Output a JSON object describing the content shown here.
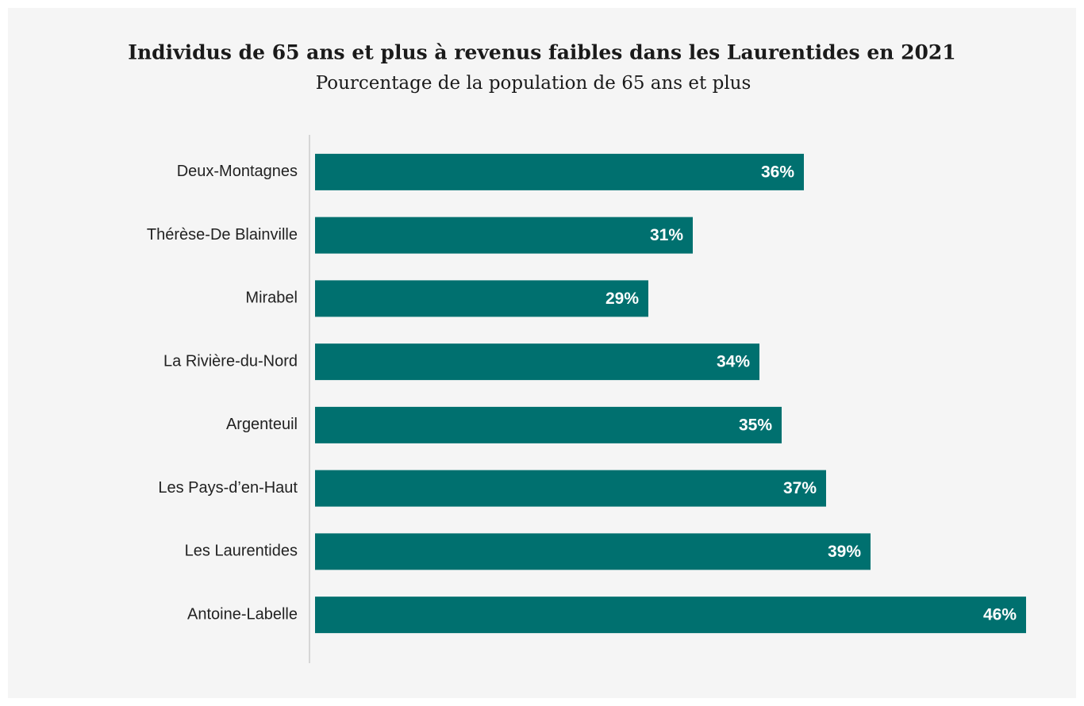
{
  "chart_data": {
    "type": "bar",
    "orientation": "horizontal",
    "title": "Individus de 65 ans et plus à revenus faibles dans les Laurentides en 2021",
    "subtitle": "Pourcentage de la population de 65 ans et plus",
    "categories": [
      "Deux-Montagnes",
      "Thérèse-De Blainville",
      "Mirabel",
      "La Rivière-du-Nord",
      "Argenteuil",
      "Les Pays-d’en-Haut",
      "Les Laurentides",
      "Antoine-Labelle"
    ],
    "values": [
      36,
      31,
      29,
      34,
      35,
      37,
      39,
      46
    ],
    "value_labels": [
      "36%",
      "31%",
      "29%",
      "34%",
      "35%",
      "37%",
      "39%",
      "46%"
    ],
    "color": "#00706f",
    "xlim": [
      14,
      46
    ]
  }
}
